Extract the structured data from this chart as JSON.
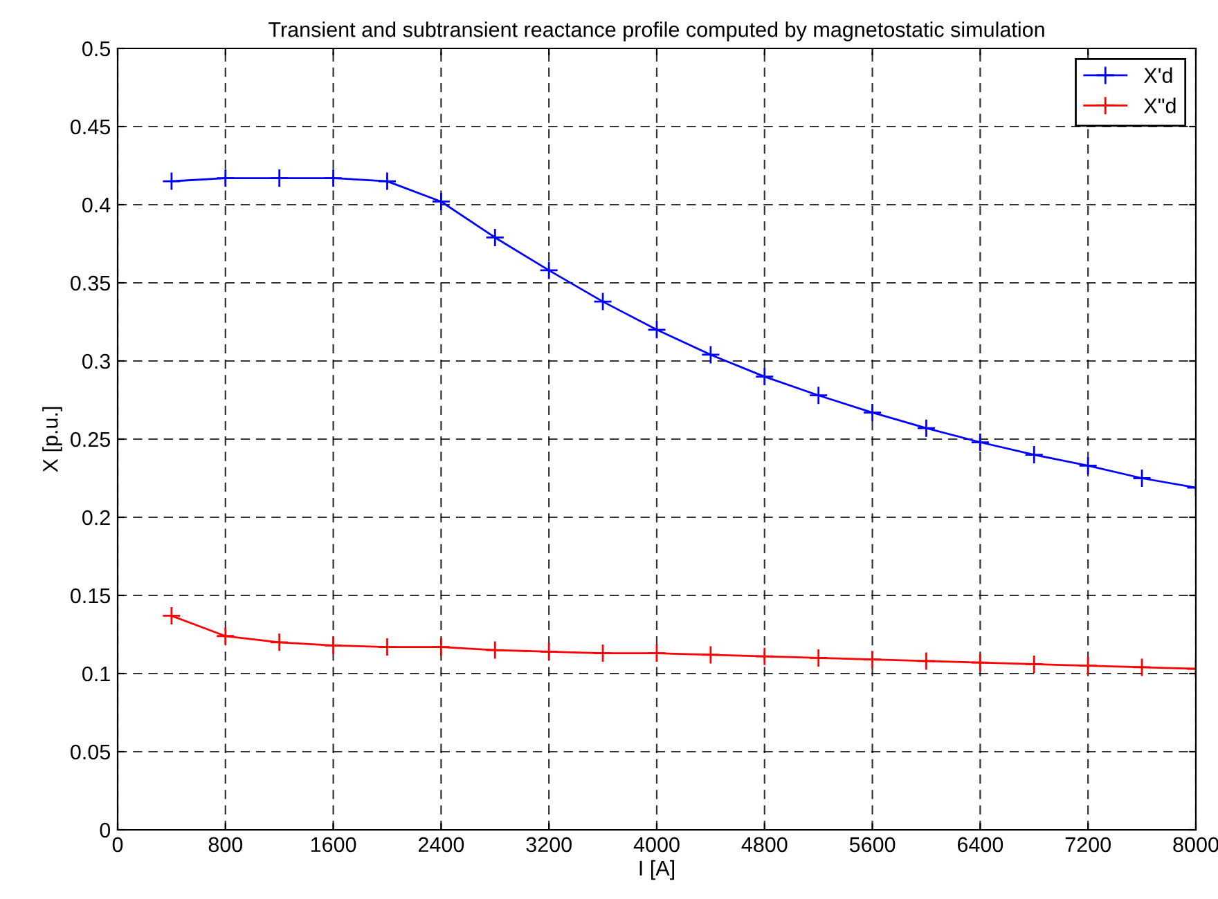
{
  "chart_data": {
    "type": "line",
    "title": "Transient and subtransient reactance profile computed by magnetostatic simulation",
    "xlabel": "I [A]",
    "ylabel": "X [p.u.]",
    "x": [
      400,
      800,
      1200,
      1600,
      2000,
      2400,
      2800,
      3200,
      3600,
      4000,
      4400,
      4800,
      5200,
      5600,
      6000,
      6400,
      6800,
      7200,
      7600,
      8000
    ],
    "series": [
      {
        "name": "X'd",
        "color": "#0000ff",
        "values": [
          0.415,
          0.417,
          0.417,
          0.417,
          0.415,
          0.402,
          0.379,
          0.358,
          0.338,
          0.32,
          0.304,
          0.29,
          0.278,
          0.267,
          0.257,
          0.248,
          0.24,
          0.233,
          0.225,
          0.219
        ]
      },
      {
        "name": "X\"d",
        "color": "#ff0000",
        "values": [
          0.137,
          0.124,
          0.12,
          0.118,
          0.117,
          0.117,
          0.115,
          0.114,
          0.113,
          0.113,
          0.112,
          0.111,
          0.11,
          0.109,
          0.108,
          0.107,
          0.106,
          0.105,
          0.104,
          0.103
        ]
      }
    ],
    "xlim": [
      0,
      8000
    ],
    "xticks": [
      0,
      800,
      1600,
      2400,
      3200,
      4000,
      4800,
      5600,
      6400,
      7200,
      8000
    ],
    "ylim": [
      0,
      0.5
    ],
    "yticks": [
      0,
      0.05,
      0.1,
      0.15,
      0.2,
      0.25,
      0.3,
      0.35,
      0.4,
      0.45,
      0.5
    ],
    "grid": true,
    "legend": "top right",
    "marker": "cross",
    "line_style": "solid"
  }
}
